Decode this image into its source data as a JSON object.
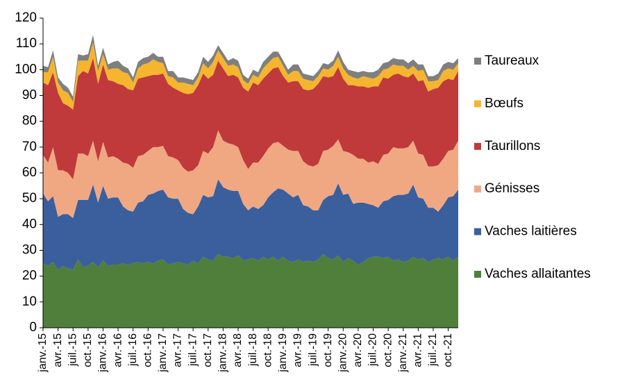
{
  "chart_data": {
    "type": "stacked_area",
    "categories": [
      "janv.-15",
      null,
      null,
      "avr.-15",
      null,
      null,
      "juil.-15",
      null,
      null,
      "oct.-15",
      null,
      null,
      "janv.-16",
      null,
      null,
      "avr.-16",
      null,
      null,
      "juil.-16",
      null,
      null,
      "oct.-16",
      null,
      null,
      "janv.-17",
      null,
      null,
      "avr.-17",
      null,
      null,
      "juil.-17",
      null,
      null,
      "oct.-17",
      null,
      null,
      "janv.-18",
      null,
      null,
      "avr.-18",
      null,
      null,
      "juil.-18",
      null,
      null,
      "oct.-18",
      null,
      null,
      "janv.-19",
      null,
      null,
      "avr.-19",
      null,
      null,
      "juil.-19",
      null,
      null,
      "oct.-19",
      null,
      null,
      "janv.-20",
      null,
      null,
      "avr.-20",
      null,
      null,
      "juil.-20",
      null,
      null,
      "oct.-20",
      null,
      null,
      "janv.-21",
      null,
      null,
      "avr.-21",
      null,
      null,
      "juil.-21",
      null,
      null,
      "oct.-21",
      null,
      null
    ],
    "series": [
      {
        "name": "Vaches allaitantes",
        "color": "#4f7f3b",
        "values": [
          25,
          24,
          25.5,
          22.5,
          24,
          23,
          22.5,
          26.5,
          23.5,
          24,
          25.5,
          23.5,
          26,
          24,
          24.5,
          24.5,
          25,
          24.5,
          25,
          25.5,
          25,
          25.5,
          25,
          26,
          26.5,
          24.5,
          25,
          25.5,
          25,
          24.5,
          26,
          25,
          27.5,
          26.5,
          26,
          28.5,
          27.5,
          27.5,
          27,
          28,
          26,
          26.5,
          27,
          26,
          27.5,
          26.5,
          27.5,
          26,
          27.5,
          26,
          25.5,
          26.5,
          25.5,
          26,
          25.5,
          26.5,
          28.5,
          27,
          26.5,
          28,
          25.5,
          27,
          26,
          24.5,
          25.5,
          27,
          27.5,
          27.5,
          27,
          27.5,
          26,
          26.5,
          25.5,
          26,
          27.5,
          26.5,
          27,
          25.5,
          26.5,
          27,
          26.5,
          27.5,
          26,
          27.5
        ]
      },
      {
        "name": "Vaches laitières",
        "color": "#3b5f9c",
        "values": [
          27,
          25,
          25.5,
          20.5,
          20,
          21,
          20,
          23,
          26,
          25.5,
          30,
          25,
          29,
          26,
          26,
          26,
          22,
          21,
          20,
          23,
          24,
          26,
          27,
          27,
          27,
          26,
          25,
          24.5,
          21,
          20,
          18,
          22,
          24,
          24,
          25,
          29,
          27,
          26,
          26,
          25,
          22,
          19,
          20,
          20,
          20,
          24,
          25,
          28,
          26,
          26,
          25,
          25,
          22,
          21,
          20,
          19,
          21,
          24,
          25,
          28,
          26,
          25,
          22,
          24,
          23,
          21,
          20,
          19,
          22,
          22,
          25,
          25,
          26,
          26,
          28,
          24,
          23,
          21,
          20,
          18,
          21,
          23,
          25,
          26
        ]
      },
      {
        "name": "Génisses",
        "color": "#f0a883",
        "values": [
          15,
          15,
          19,
          18,
          17,
          16,
          15,
          18,
          18,
          17,
          17,
          16,
          17,
          16,
          16,
          15,
          17,
          18,
          17,
          18,
          18,
          17,
          18,
          17,
          17,
          16,
          16,
          15,
          16,
          16,
          17,
          16,
          17,
          17,
          19,
          19,
          18,
          18,
          18,
          17,
          17,
          16,
          17,
          18,
          19,
          19,
          19,
          18,
          17,
          17,
          18,
          17,
          17,
          16,
          17,
          18,
          19,
          18,
          19,
          17,
          17,
          16,
          19,
          17,
          17,
          16,
          17,
          17,
          18,
          18,
          19,
          18,
          18,
          18,
          17,
          17,
          17,
          16,
          16,
          18,
          18,
          18,
          18,
          19
        ]
      },
      {
        "name": "Taurillons",
        "color": "#c0393b",
        "values": [
          28,
          30,
          29,
          30,
          26,
          26,
          27,
          30,
          32,
          32,
          32,
          30,
          30,
          30,
          29,
          29,
          30,
          29,
          30,
          30,
          30,
          29,
          28,
          28,
          28,
          28,
          27,
          27,
          29,
          30,
          30,
          31,
          30,
          29,
          28,
          27,
          28,
          26,
          27,
          27,
          28,
          30,
          31,
          30,
          30,
          29,
          29,
          29,
          27,
          26,
          27,
          27,
          28,
          29,
          30,
          31,
          29,
          28,
          27,
          28,
          28,
          26,
          27,
          28,
          28,
          29,
          29,
          30,
          30,
          29,
          28,
          29,
          28,
          27,
          26,
          28,
          29,
          29,
          30,
          30,
          30,
          28,
          27,
          27
        ]
      },
      {
        "name": "Bœufs",
        "color": "#f5b52e",
        "values": [
          4,
          5,
          6,
          4,
          5,
          5,
          3,
          6,
          4,
          5,
          6,
          5,
          4,
          4,
          5,
          6,
          5,
          6,
          3,
          4,
          5,
          5,
          6,
          5,
          4,
          3,
          4,
          3,
          4,
          4,
          3,
          3,
          4,
          4,
          5,
          4,
          4,
          4,
          4,
          4,
          3,
          3,
          3,
          3,
          4,
          4,
          4,
          4,
          4,
          3,
          4,
          4,
          4,
          4,
          3,
          3,
          3,
          3,
          4,
          4,
          4,
          4,
          3,
          3,
          4,
          4,
          3,
          4,
          3,
          4,
          4,
          3,
          4,
          3,
          3,
          4,
          4,
          4,
          3,
          3,
          4,
          4,
          4,
          3
        ]
      },
      {
        "name": "Taureaux",
        "color": "#7f7f7f",
        "values": [
          2.5,
          2,
          2.5,
          2,
          2.5,
          2,
          2,
          2.5,
          2,
          2.5,
          3,
          2,
          2.5,
          2,
          2.5,
          3,
          2.5,
          2,
          2,
          2.5,
          2.5,
          2.5,
          2.5,
          2,
          2.5,
          2,
          2.5,
          2,
          2,
          2,
          2,
          2,
          2.5,
          2.5,
          2.5,
          2,
          2,
          2,
          2.5,
          2.5,
          2,
          2,
          2,
          2,
          2.5,
          2.5,
          2.5,
          2,
          2,
          2,
          2.5,
          2.5,
          2,
          2,
          2,
          2,
          2,
          2,
          2,
          2.5,
          2.5,
          2,
          2.5,
          2.5,
          2,
          2,
          2.5,
          2.5,
          2.5,
          2.5,
          2.5,
          2.5,
          2.5,
          2.5,
          2.5,
          2.5,
          2,
          2,
          2,
          2.5,
          2.5,
          2.5,
          2.5,
          2
        ]
      }
    ],
    "ylim": [
      0,
      120
    ],
    "yticks": [
      0,
      10,
      20,
      30,
      40,
      50,
      60,
      70,
      80,
      90,
      100,
      110,
      120
    ],
    "grid": false,
    "legend": "right"
  }
}
